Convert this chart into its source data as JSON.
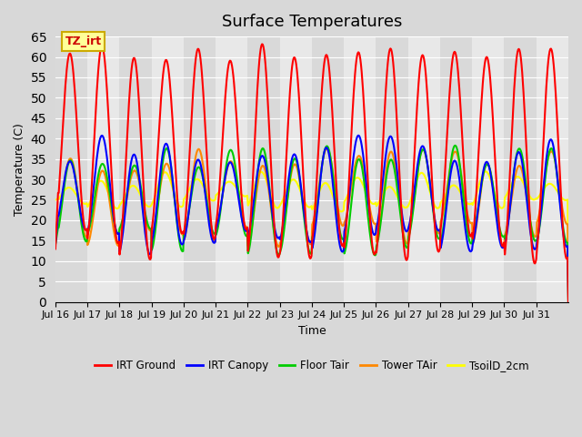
{
  "title": "Surface Temperatures",
  "xlabel": "Time",
  "ylabel": "Temperature (C)",
  "ylim": [
    0,
    65
  ],
  "yticks": [
    0,
    5,
    10,
    15,
    20,
    25,
    30,
    35,
    40,
    45,
    50,
    55,
    60,
    65
  ],
  "xtick_labels": [
    "Jul 16",
    "Jul 17",
    "Jul 18",
    "Jul 19",
    "Jul 20",
    "Jul 21",
    "Jul 22",
    "Jul 23",
    "Jul 24",
    "Jul 25",
    "Jul 26",
    "Jul 27",
    "Jul 28",
    "Jul 29",
    "Jul 30",
    "Jul 31"
  ],
  "xtick_positions": [
    0,
    1,
    2,
    3,
    4,
    5,
    6,
    7,
    8,
    9,
    10,
    11,
    12,
    13,
    14,
    15
  ],
  "series": {
    "IRT Ground": {
      "color": "#ff0000",
      "lw": 1.5
    },
    "IRT Canopy": {
      "color": "#0000ff",
      "lw": 1.5
    },
    "Floor Tair": {
      "color": "#00cc00",
      "lw": 1.5
    },
    "Tower TAir": {
      "color": "#ff8800",
      "lw": 1.5
    },
    "TsoilD_2cm": {
      "color": "#ffff00",
      "lw": 1.5
    }
  },
  "annotation_text": "TZ_irt",
  "annotation_box_color": "#ffff99",
  "annotation_box_edge": "#ccaa00",
  "annotation_text_color": "#cc0000",
  "n_days": 16,
  "points_per_day": 48
}
